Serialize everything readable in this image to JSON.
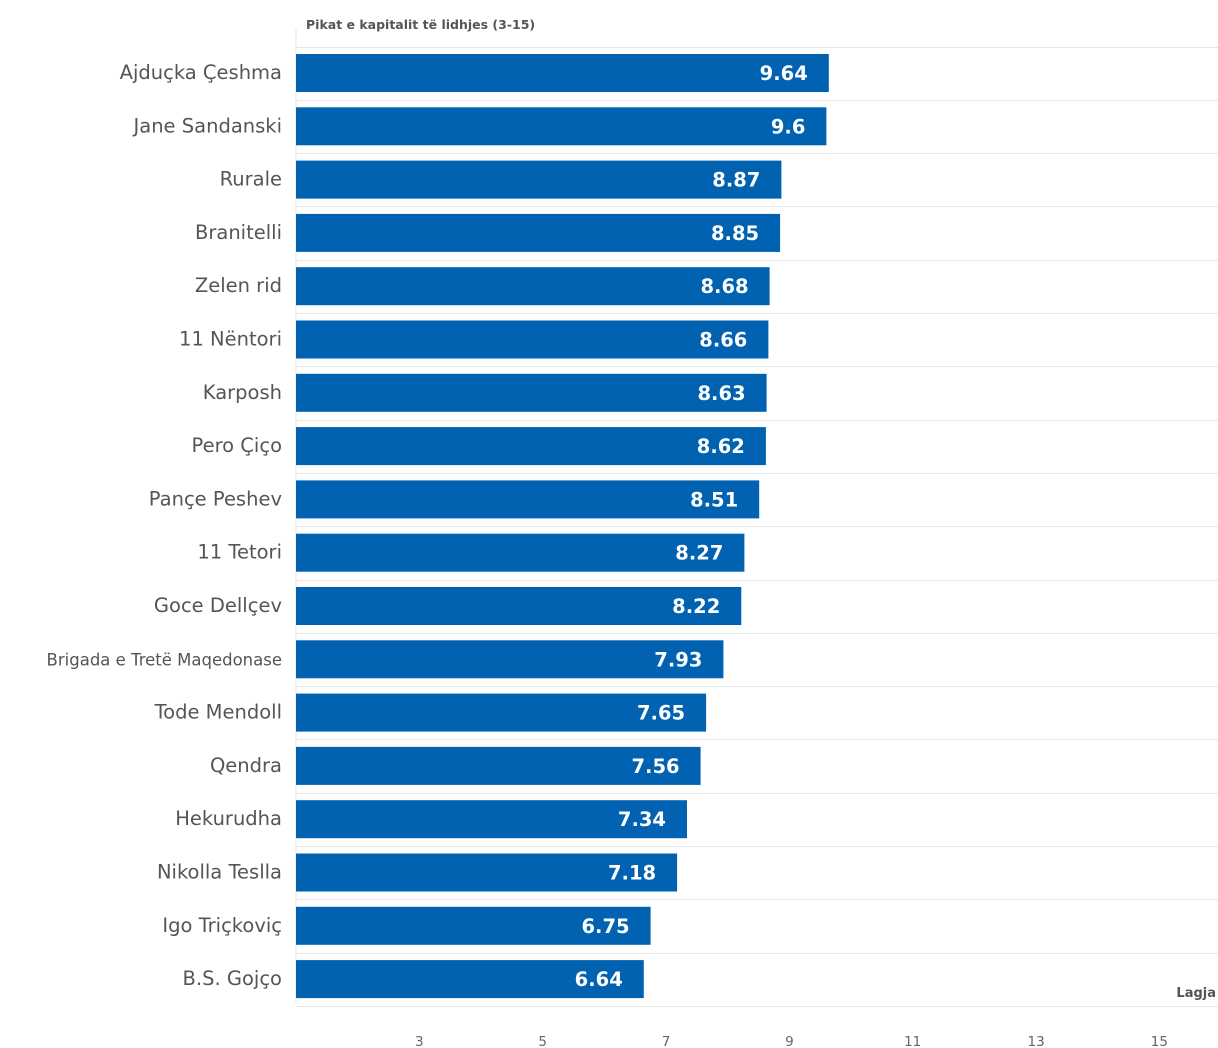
{
  "chart_data": {
    "type": "bar",
    "orientation": "horizontal",
    "title": "",
    "ylabel": "Pikat e kapitalit të lidhjes (3-15)",
    "xlabel": "Lagja",
    "categories": [
      "Ajduçka Çeshma",
      "Jane Sandanski",
      "Rurale",
      "Branitelli",
      "Zelen rid",
      "11 Nëntori",
      "Karposh",
      "Pero Çiço",
      "Pançe Peshev",
      "11 Tetori",
      "Goce Dellçev",
      "Brigada e Tretë Maqedonase",
      "Tode Mendoll",
      "Qendra",
      "Hekurudha",
      "Nikolla Teslla",
      "Igo Triçkoviç",
      "B.S. Gojço"
    ],
    "values": [
      9.64,
      9.6,
      8.87,
      8.85,
      8.68,
      8.66,
      8.63,
      8.62,
      8.51,
      8.27,
      8.22,
      7.93,
      7.65,
      7.56,
      7.34,
      7.18,
      6.75,
      6.64
    ],
    "value_labels": [
      "9.64",
      "9.6",
      "8.87",
      "8.85",
      "8.68",
      "8.66",
      "8.63",
      "8.62",
      "8.51",
      "8.27",
      "8.22",
      "7.93",
      "7.65",
      "7.56",
      "7.34",
      "7.18",
      "6.75",
      "6.64"
    ],
    "ticks": [
      3,
      5,
      7,
      9,
      11,
      13,
      15
    ],
    "tick_labels": [
      "3",
      "5",
      "7",
      "9",
      "11",
      "13",
      "15"
    ],
    "xlim": [
      1.0,
      15.95
    ],
    "grid": true,
    "legend": "none",
    "bar_color": "#0062b1",
    "gridline_color": "#e6e6e6",
    "label_color": "#555555"
  }
}
